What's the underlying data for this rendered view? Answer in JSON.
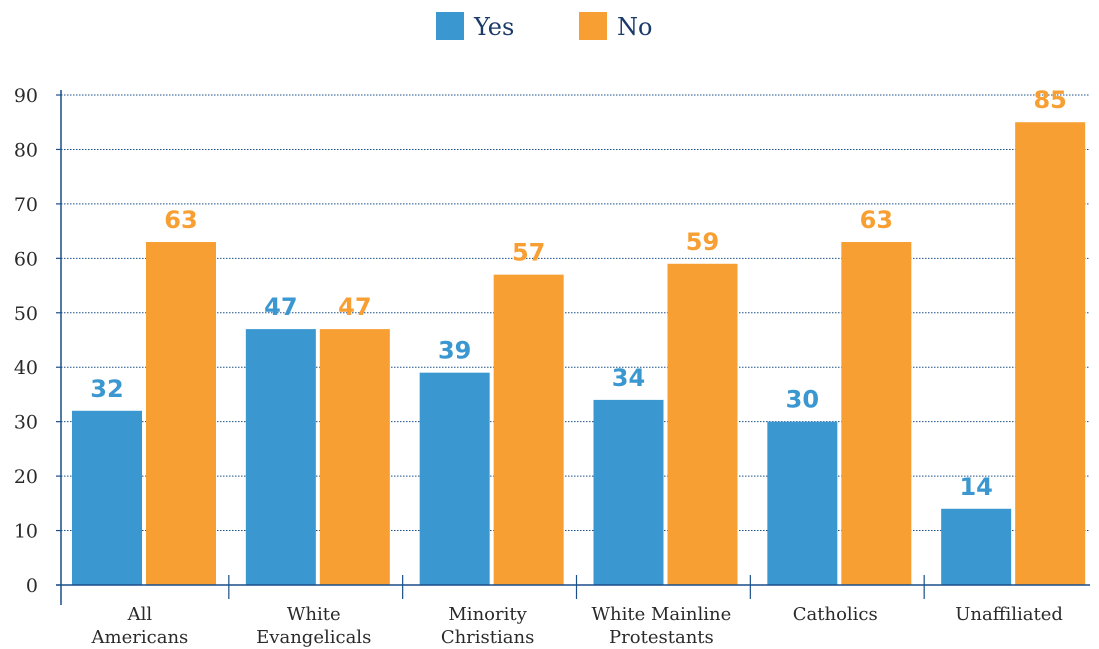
{
  "chart_data": {
    "type": "bar",
    "categories": [
      [
        "All",
        "Americans"
      ],
      [
        "White",
        "Evangelicals"
      ],
      [
        "Minority",
        "Christians"
      ],
      [
        "White Mainline",
        "Protestants"
      ],
      [
        "Catholics"
      ],
      [
        "Unaffiliated"
      ]
    ],
    "series": [
      {
        "name": "Yes",
        "color": "#3a97cf",
        "values": [
          32,
          47,
          39,
          34,
          30,
          14
        ]
      },
      {
        "name": "No",
        "color": "#f79f32",
        "values": [
          63,
          47,
          57,
          59,
          63,
          85
        ]
      }
    ],
    "yticks": [
      0,
      10,
      20,
      30,
      40,
      50,
      60,
      70,
      80,
      90
    ],
    "ylim": [
      0,
      90
    ],
    "grid": true,
    "legend_position": "top-center",
    "axis_color": "#1a4f8a"
  }
}
